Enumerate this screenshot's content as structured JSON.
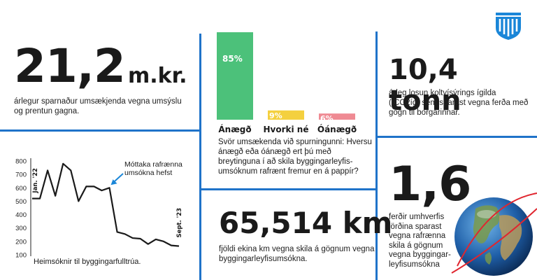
{
  "stats": {
    "savings": {
      "value": "21,2",
      "unit": "m.kr.",
      "desc": "árlegur sparnaður umsækjenda vegna umsýslu og prentun gagna."
    },
    "emissions": {
      "value": "10,4 tonn",
      "desc": "árleg losun koltvísýrings ígilda (tCO2íg) sem sparast vegna ferða með gögn til borgarinnar."
    },
    "distance": {
      "value": "65,514 km",
      "desc": "fjöldi ekina km vegna skila á gögnum vegna byggingarleyfisumsókna."
    },
    "trips": {
      "value": "1,6",
      "desc": "ferðir umhverfis jörðina sparast vegna rafrænna skila á gögnum vegna byggingar-leyfisumsókna"
    }
  },
  "survey": {
    "question": "Svör umsækenda við spurningunni: Hversu ánægð eða óánægð ert þú með breytinguna í að skila byggingarleyfis-umsóknum rafrænt fremur en á pappír?"
  },
  "linechart_caption": "Heimsóknir til byggingarfulltrúa.",
  "colors": {
    "divider": "#1f73c9",
    "satisfied": "#4cc17a",
    "neutral": "#f4d03f",
    "dissatisfied": "#ef8a93",
    "accent": "#1a86d8"
  },
  "icons": {
    "logo": "reykjavik-crest-icon",
    "globe": "earth-globe-icon"
  },
  "chart_data": [
    {
      "type": "bar",
      "categories": [
        "Ánægð",
        "Hvorki né",
        "Óánægð"
      ],
      "values": [
        85,
        9,
        6
      ],
      "value_labels": [
        "85%",
        "9%",
        "6%"
      ],
      "ylim": [
        0,
        100
      ]
    },
    {
      "type": "line",
      "y": [
        520,
        520,
        730,
        540,
        780,
        730,
        500,
        610,
        610,
        580,
        600,
        270,
        255,
        225,
        220,
        180,
        215,
        200,
        170,
        165
      ],
      "ylim": [
        100,
        800
      ],
      "yticks": [
        "100",
        "200",
        "300",
        "400",
        "500",
        "600",
        "700",
        "800"
      ],
      "grid": false,
      "annotations": {
        "start": "Jan. '22",
        "end": "Sept. '23",
        "event": "Móttaka rafrænna umsókna hefst"
      }
    }
  ]
}
